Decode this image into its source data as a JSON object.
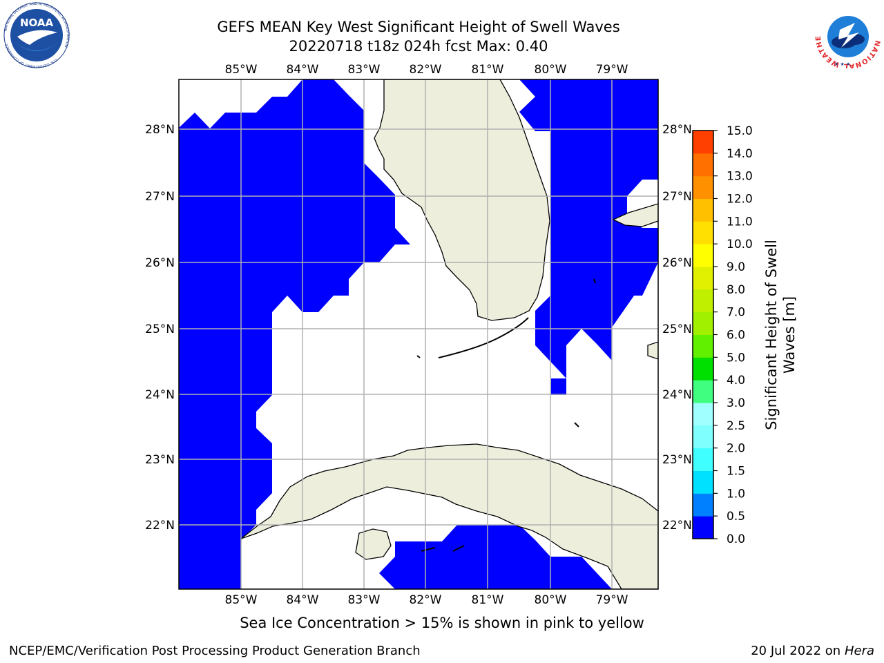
{
  "header": {
    "title_line1": "GEFS MEAN Key West Significant Height of Swell Waves",
    "title_line2": "20220718 t18z 024h fcst   Max: 0.40"
  },
  "map": {
    "lon_labels": [
      "85°W",
      "84°W",
      "83°W",
      "82°W",
      "81°W",
      "80°W",
      "79°W"
    ],
    "lat_labels": [
      "28°N",
      "27°N",
      "26°N",
      "25°N",
      "24°N",
      "23°N",
      "22°N"
    ],
    "colors": {
      "ocean_swell": "#0000ff",
      "land": "#eeeedd",
      "grid": "#b0b0b0"
    }
  },
  "colorbar": {
    "label_line1": "Significant Height of Swell",
    "label_line2": "Waves [m]",
    "ticks": [
      "0.0",
      "0.5",
      "1.0",
      "1.5",
      "2.0",
      "2.5",
      "3.0",
      "4.0",
      "5.0",
      "6.0",
      "7.0",
      "8.0",
      "9.0",
      "10.0",
      "11.0",
      "12.0",
      "13.0",
      "14.0",
      "15.0"
    ],
    "colors": [
      "#0000ff",
      "#0080ff",
      "#00e0ff",
      "#40ffff",
      "#80ffff",
      "#a0ffff",
      "#40ff80",
      "#00e000",
      "#60f000",
      "#a0f000",
      "#c0f000",
      "#e0f000",
      "#ffff00",
      "#ffe000",
      "#ffc000",
      "#ff9000",
      "#ff7000",
      "#ff4000",
      "#ff0000"
    ]
  },
  "footer": {
    "note": "Sea Ice Concentration > 15% is shown in pink to yellow",
    "left": "NCEP/EMC/Verification Post Processing Product Generation Branch",
    "right_date": "20 Jul 2022 on ",
    "right_machine": "Hera"
  },
  "logos": {
    "noaa": "NOAA",
    "noaa_ring": "NATIONAL OCEANIC AND ATMOSPHERIC ADMINISTRATION",
    "noaa_ring_bottom": "U.S. DEPARTMENT OF COMMERCE",
    "nws_ring": "NATIONAL WEATHER SERVICE"
  }
}
